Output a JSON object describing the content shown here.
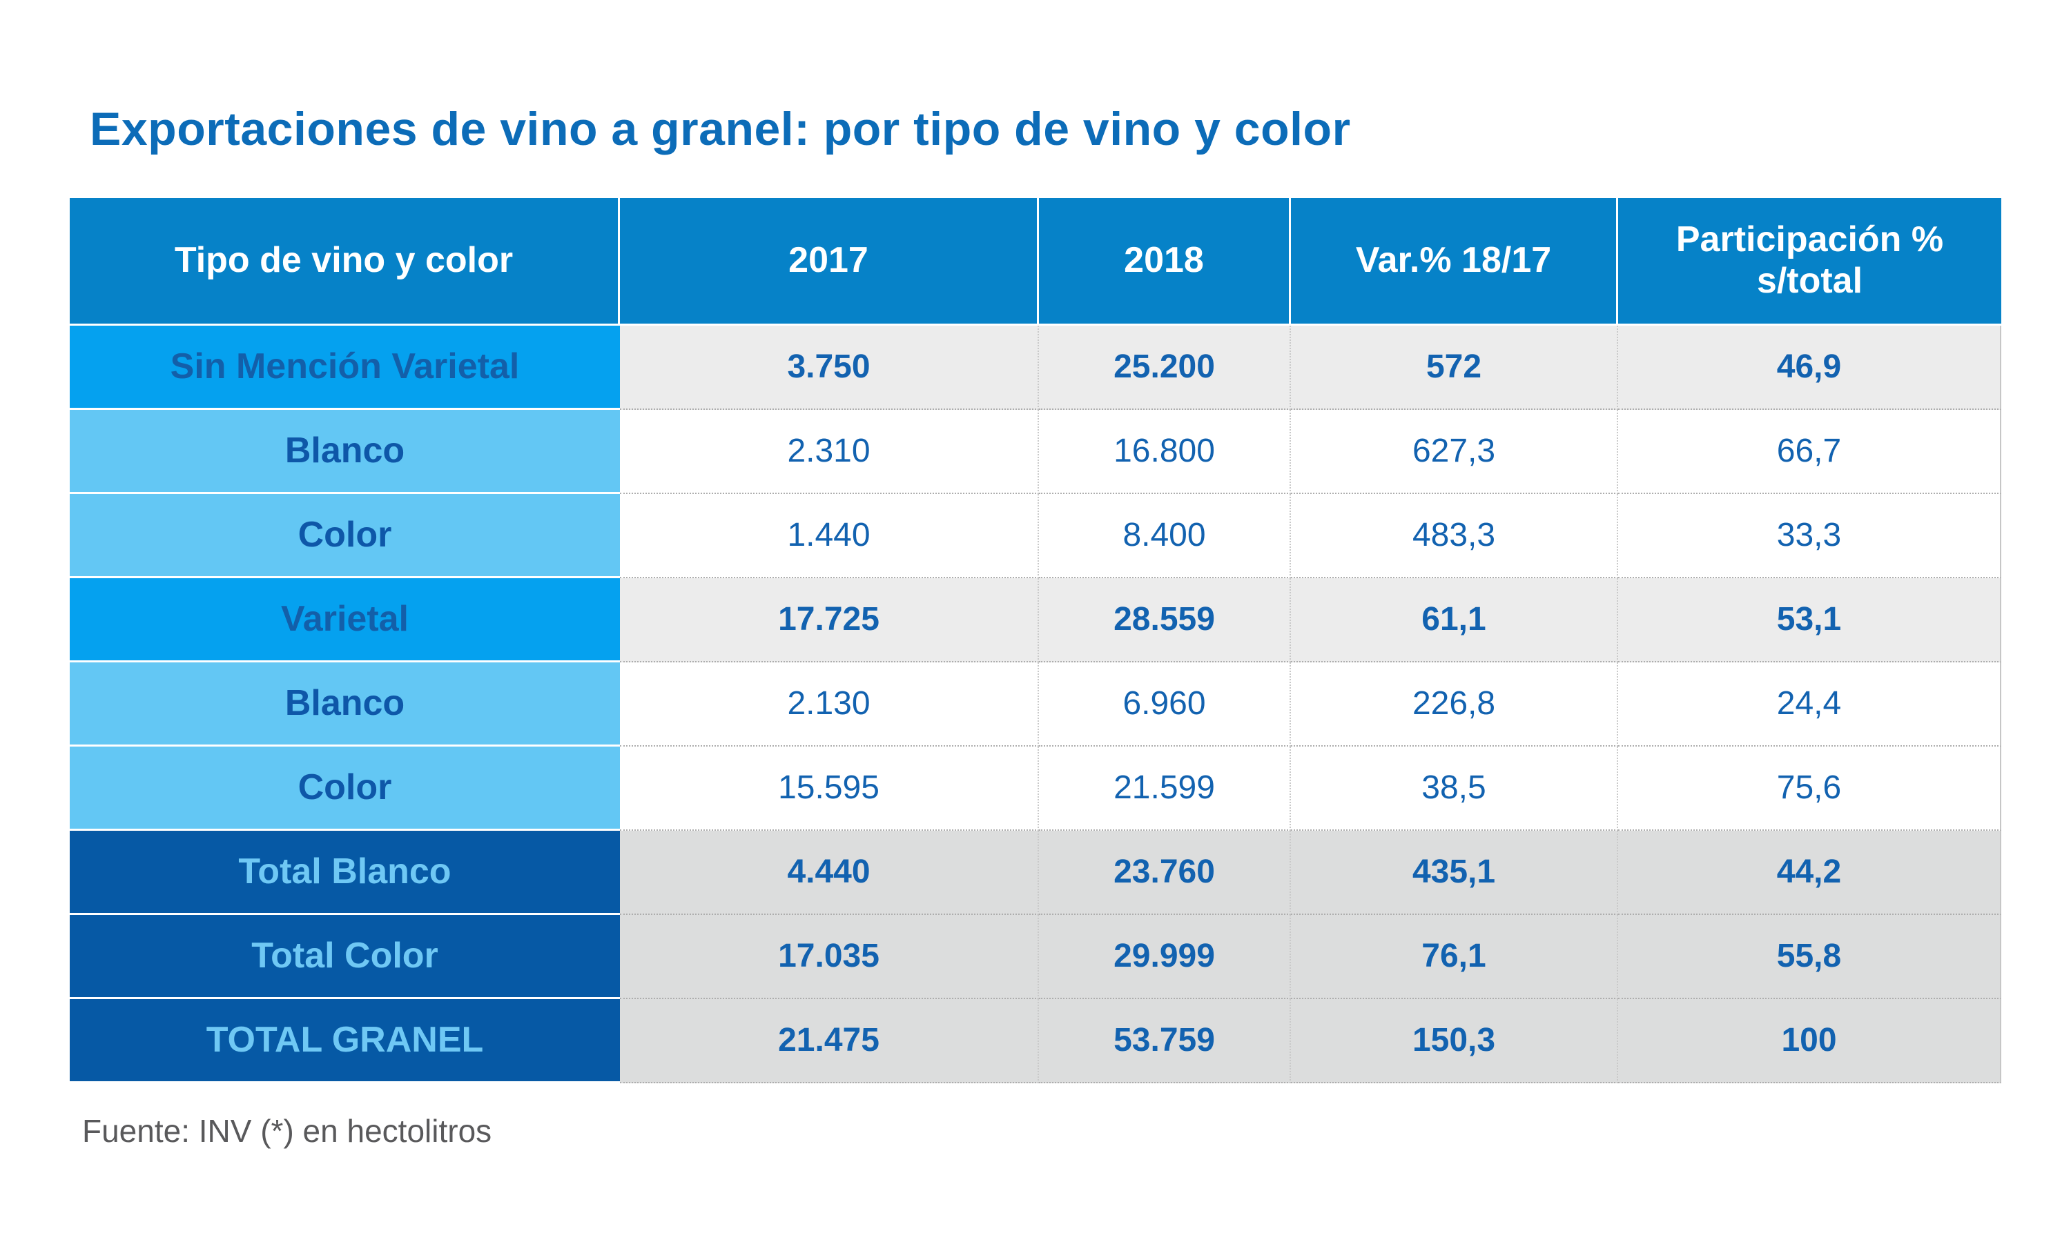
{
  "title": "Exportaciones de vino a granel: por tipo de vino y color",
  "footer": {
    "source_note": "Fuente: INV (*) en hectolitros"
  },
  "colors": {
    "title_blue": "#0C6CB8",
    "header_bg": "#0682C8",
    "header_text": "#FFFFFF",
    "group_row_bg": "#05A1EF",
    "group_label_text": "#135FA9",
    "sub_row_bg": "#63C7F4",
    "sub_label_text": "#0E57A8",
    "total_row_bg": "#0659A5",
    "total_label_text": "#6FC8F4",
    "value_text": "#1262B0",
    "value_bg_group": "#ECECEC",
    "value_bg_sub": "#FFFFFF",
    "value_bg_total": "#DCDDDD",
    "source_text": "#59595B"
  },
  "table": {
    "columns": [
      "Tipo de vino y color",
      "2017",
      "2018",
      "Var.% 18/17",
      "Participación % s/total"
    ],
    "rows": [
      {
        "label": "Sin Mención Varietal",
        "style": "group",
        "values": [
          "3.750",
          "25.200",
          "572",
          "46,9"
        ]
      },
      {
        "label": "Blanco",
        "style": "sub",
        "values": [
          "2.310",
          "16.800",
          "627,3",
          "66,7"
        ]
      },
      {
        "label": "Color",
        "style": "sub",
        "values": [
          "1.440",
          "8.400",
          "483,3",
          "33,3"
        ]
      },
      {
        "label": "Varietal",
        "style": "group",
        "values": [
          "17.725",
          "28.559",
          "61,1",
          "53,1"
        ]
      },
      {
        "label": "Blanco",
        "style": "sub",
        "values": [
          "2.130",
          "6.960",
          "226,8",
          "24,4"
        ]
      },
      {
        "label": "Color",
        "style": "sub",
        "values": [
          "15.595",
          "21.599",
          "38,5",
          "75,6"
        ]
      },
      {
        "label": "Total Blanco",
        "style": "total",
        "values": [
          "4.440",
          "23.760",
          "435,1",
          "44,2"
        ]
      },
      {
        "label": "Total Color",
        "style": "total",
        "values": [
          "17.035",
          "29.999",
          "76,1",
          "55,8"
        ]
      },
      {
        "label": "TOTAL GRANEL",
        "style": "total",
        "values": [
          "21.475",
          "53.759",
          "150,3",
          "100"
        ]
      }
    ]
  },
  "chart_data": {
    "type": "table",
    "title": "Exportaciones de vino a granel: por tipo de vino y color",
    "unit": "hectolitros",
    "source": "INV",
    "columns": [
      "Tipo de vino y color",
      "2017",
      "2018",
      "Var.% 18/17",
      "Participación % s/total"
    ],
    "rows": [
      {
        "tipo": "Sin Mención Varietal",
        "y2017": 3750,
        "y2018": 25200,
        "var_pct_18_17": 572,
        "participacion_pct": 46.9
      },
      {
        "tipo": "Blanco",
        "y2017": 2310,
        "y2018": 16800,
        "var_pct_18_17": 627.3,
        "participacion_pct": 66.7
      },
      {
        "tipo": "Color",
        "y2017": 1440,
        "y2018": 8400,
        "var_pct_18_17": 483.3,
        "participacion_pct": 33.3
      },
      {
        "tipo": "Varietal",
        "y2017": 17725,
        "y2018": 28559,
        "var_pct_18_17": 61.1,
        "participacion_pct": 53.1
      },
      {
        "tipo": "Blanco",
        "y2017": 2130,
        "y2018": 6960,
        "var_pct_18_17": 226.8,
        "participacion_pct": 24.4
      },
      {
        "tipo": "Color",
        "y2017": 15595,
        "y2018": 21599,
        "var_pct_18_17": 38.5,
        "participacion_pct": 75.6
      },
      {
        "tipo": "Total Blanco",
        "y2017": 4440,
        "y2018": 23760,
        "var_pct_18_17": 435.1,
        "participacion_pct": 44.2
      },
      {
        "tipo": "Total Color",
        "y2017": 17035,
        "y2018": 29999,
        "var_pct_18_17": 76.1,
        "participacion_pct": 55.8
      },
      {
        "tipo": "TOTAL GRANEL",
        "y2017": 21475,
        "y2018": 53759,
        "var_pct_18_17": 150.3,
        "participacion_pct": 100
      }
    ]
  }
}
